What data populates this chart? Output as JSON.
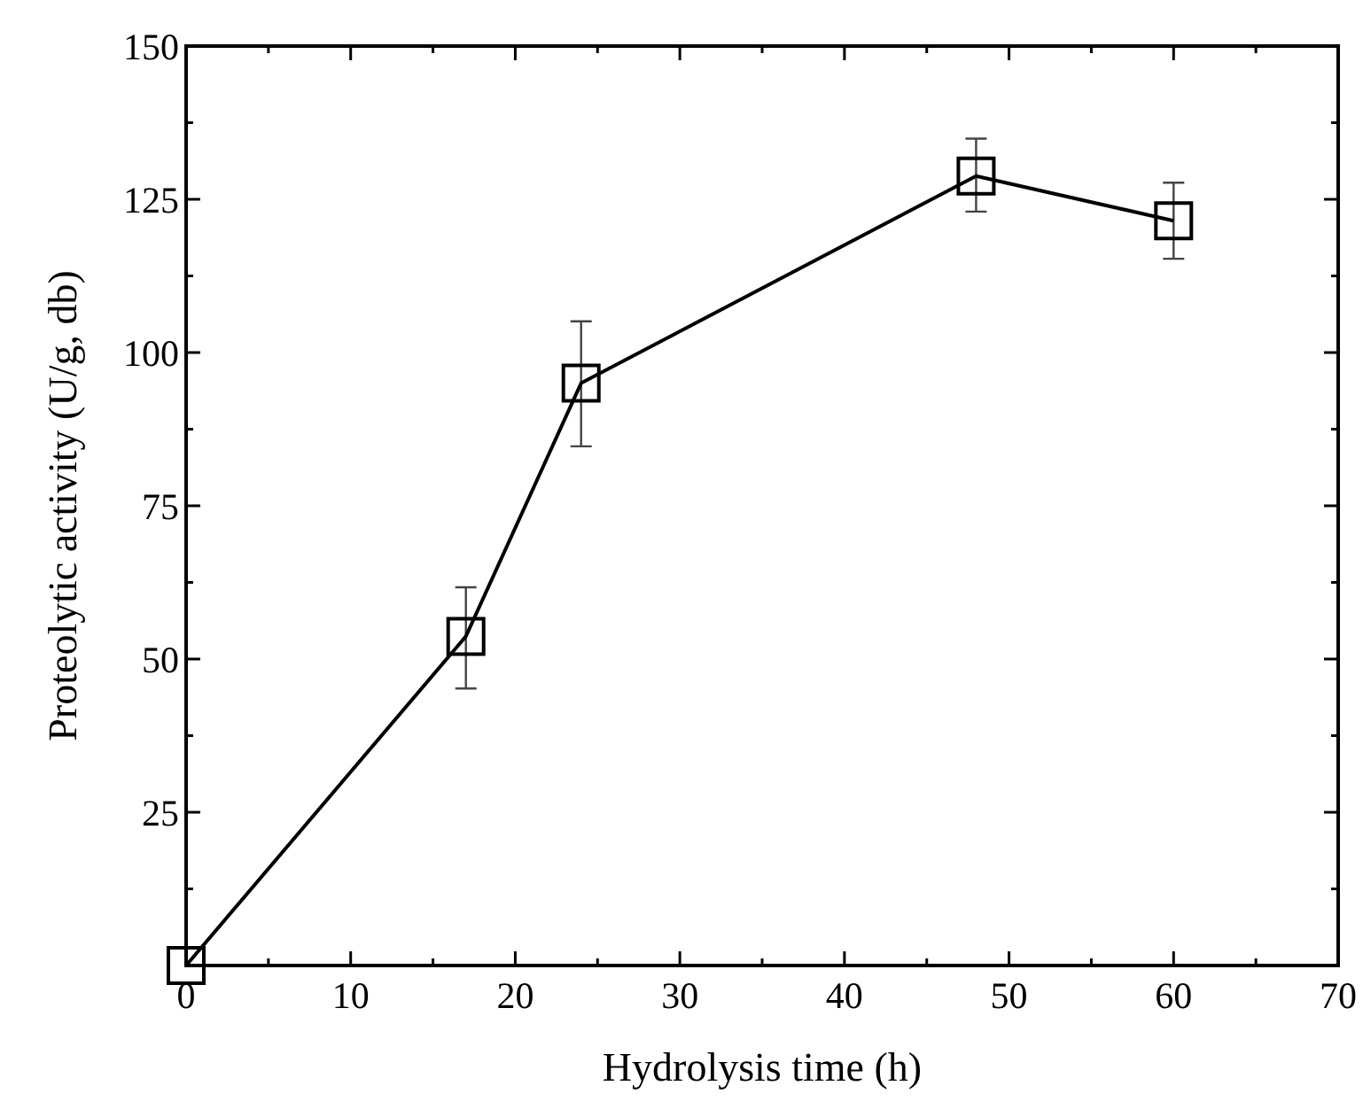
{
  "chart_data": {
    "type": "line",
    "xlabel": "Hydrolysis time (h)",
    "ylabel": "Proteolytic activity (U/g, db)",
    "x": [
      0,
      17,
      24,
      48,
      60
    ],
    "series": [
      {
        "color": "#000000",
        "values": [
          0,
          53.7,
          95,
          128.8,
          121.5
        ],
        "errors": [
          null,
          [
            45.2,
            61.7
          ],
          [
            84.7,
            105.1
          ],
          [
            123,
            134.9
          ],
          [
            115.3,
            127.7
          ]
        ]
      }
    ],
    "xlim": [
      0,
      70
    ],
    "ylim": [
      0,
      150
    ],
    "xticks": [
      0,
      {
        "value": 5,
        "label": null
      },
      10,
      {
        "value": 15,
        "label": null
      },
      20,
      {
        "value": 25,
        "label": null
      },
      30,
      {
        "value": 35,
        "label": null
      },
      40,
      {
        "value": 45,
        "label": null
      },
      50,
      {
        "value": 55,
        "label": null
      },
      60,
      {
        "value": 65,
        "label": null
      },
      70
    ],
    "yticks": [
      {
        "value": 12.5,
        "label": null
      },
      25,
      {
        "value": 37.5,
        "label": null
      },
      50,
      {
        "value": 62.5,
        "label": null
      },
      75,
      {
        "value": 87.5,
        "label": null
      },
      100,
      {
        "value": 112.5,
        "label": null
      },
      125,
      {
        "value": 137.5,
        "label": null
      },
      150
    ],
    "marker": "square",
    "line_style": "solid",
    "grid": false
  }
}
